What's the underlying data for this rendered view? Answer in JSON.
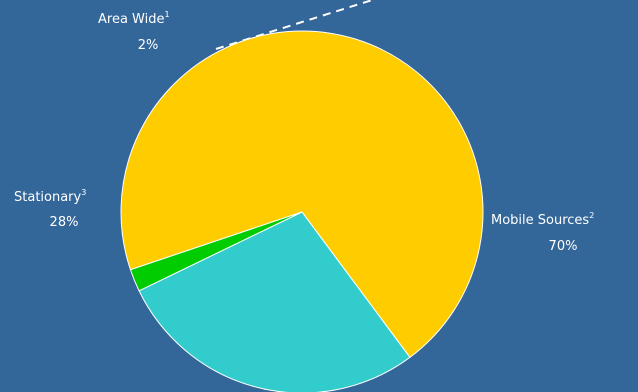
{
  "chart_data": {
    "type": "pie",
    "title": "",
    "slices": [
      {
        "label": "Mobile Sources",
        "footnote": "2",
        "value_label": "70%",
        "value": 70,
        "color": "#ffcc00"
      },
      {
        "label": "Stationary",
        "footnote": "3",
        "value_label": "28%",
        "value": 28,
        "color": "#33cccc"
      },
      {
        "label": "Area Wide",
        "footnote": "1",
        "value_label": "2%",
        "value": 2,
        "color": "#00cc00"
      }
    ],
    "background": "#336699",
    "slice_border": "#ffffff",
    "leader_line": "dashed white callout extending up-right from the Area Wide slice"
  }
}
